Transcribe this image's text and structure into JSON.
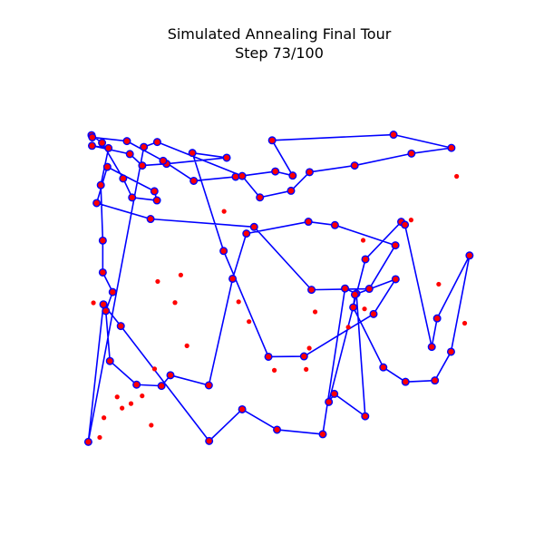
{
  "chart_data": {
    "type": "scatter",
    "title": "Simulated Annealing Final Tour",
    "subtitle": "Step 73/100",
    "xlabel": "",
    "ylabel": "",
    "axes_visible": false,
    "grid": false,
    "xlim": [
      -4.5,
      104.5
    ],
    "ylim": [
      -4.5,
      104.5
    ],
    "colors": {
      "tour_line": "#0000ff",
      "tour_point_face": "#ff0000",
      "tour_point_edge": "#0000ff",
      "unvisited_point": "#ff0000"
    },
    "tour": [
      [
        0.75,
        5.21
      ],
      [
        4.66,
        41.46
      ],
      [
        9.15,
        35.75
      ],
      [
        31.99,
        5.45
      ],
      [
        40.53,
        13.79
      ],
      [
        49.54,
        8.42
      ],
      [
        61.37,
        7.23
      ],
      [
        67.12,
        45.65
      ],
      [
        70.06,
        44.3
      ],
      [
        72.34,
        11.97
      ],
      [
        64.34,
        17.87
      ],
      [
        62.93,
        15.74
      ],
      [
        72.39,
        53.35
      ],
      [
        81.65,
        63.23
      ],
      [
        82.61,
        62.45
      ],
      [
        89.55,
        30.25
      ],
      [
        90.94,
        37.77
      ],
      [
        99.31,
        54.35
      ],
      [
        94.53,
        28.98
      ],
      [
        90.36,
        21.4
      ],
      [
        82.76,
        21.04
      ],
      [
        77.02,
        24.86
      ],
      [
        69.25,
        40.68
      ],
      [
        69.68,
        44.05
      ],
      [
        80.2,
        48.1
      ],
      [
        74.5,
        38.92
      ],
      [
        56.52,
        27.76
      ],
      [
        47.32,
        27.66
      ],
      [
        35.73,
        55.55
      ],
      [
        27.66,
        81.39
      ],
      [
        36.53,
        80.13
      ],
      [
        20.98,
        78.53
      ],
      [
        14.7,
        78.06
      ],
      [
        11.49,
        81.1
      ],
      [
        1.71,
        83.28
      ],
      [
        5.97,
        82.66
      ],
      [
        3.98,
        72.91
      ],
      [
        4.49,
        58.29
      ],
      [
        4.49,
        49.89
      ],
      [
        7.05,
        44.71
      ],
      [
        5.28,
        39.73
      ],
      [
        6.34,
        26.53
      ],
      [
        13.23,
        20.3
      ],
      [
        19.68,
        19.97
      ],
      [
        21.99,
        22.79
      ],
      [
        31.91,
        20.12
      ],
      [
        38.06,
        48.22
      ],
      [
        41.62,
        60.13
      ],
      [
        57.66,
        63.26
      ],
      [
        64.51,
        62.36
      ],
      [
        80.14,
        57.03
      ],
      [
        73.39,
        45.57
      ],
      [
        58.45,
        45.31
      ],
      [
        43.62,
        61.88
      ],
      [
        16.85,
        63.98
      ],
      [
        2.91,
        68.17
      ],
      [
        5.66,
        77.71
      ],
      [
        17.84,
        71.3
      ],
      [
        18.49,
        68.88
      ],
      [
        12.08,
        69.64
      ],
      [
        9.76,
        74.65
      ],
      [
        4.31,
        84.06
      ],
      [
        1.58,
        86.07
      ],
      [
        1.78,
        85.51
      ],
      [
        10.73,
        84.51
      ],
      [
        20.1,
        79.32
      ],
      [
        28.0,
        74.03
      ],
      [
        38.84,
        75.11
      ],
      [
        49.1,
        76.51
      ],
      [
        53.59,
        75.42
      ],
      [
        48.28,
        84.71
      ],
      [
        79.66,
        86.21
      ],
      [
        94.63,
        82.72
      ],
      [
        84.3,
        81.23
      ],
      [
        69.61,
        78.07
      ],
      [
        57.96,
        76.33
      ],
      [
        53.16,
        71.41
      ],
      [
        45.12,
        69.66
      ],
      [
        40.53,
        75.31
      ],
      [
        18.57,
        84.27
      ],
      [
        15.11,
        82.96
      ],
      [
        0.75,
        5.21
      ]
    ],
    "unvisited_points": [
      [
        2.08,
        41.87
      ],
      [
        3.7,
        6.39
      ],
      [
        4.79,
        11.58
      ],
      [
        8.21,
        17.07
      ],
      [
        9.48,
        14.11
      ],
      [
        11.79,
        15.31
      ],
      [
        14.67,
        17.34
      ],
      [
        17.02,
        9.61
      ],
      [
        17.88,
        24.45
      ],
      [
        18.69,
        47.51
      ],
      [
        23.16,
        41.93
      ],
      [
        24.66,
        49.21
      ],
      [
        26.25,
        30.55
      ],
      [
        35.85,
        65.98
      ],
      [
        39.61,
        42.15
      ],
      [
        42.3,
        36.93
      ],
      [
        48.85,
        24.1
      ],
      [
        57.07,
        24.34
      ],
      [
        57.88,
        29.92
      ],
      [
        59.39,
        39.49
      ],
      [
        67.96,
        35.46
      ],
      [
        71.81,
        58.36
      ],
      [
        72.16,
        40.27
      ],
      [
        84.2,
        63.71
      ],
      [
        91.34,
        46.78
      ],
      [
        95.98,
        75.22
      ],
      [
        98.06,
        36.5
      ]
    ]
  }
}
